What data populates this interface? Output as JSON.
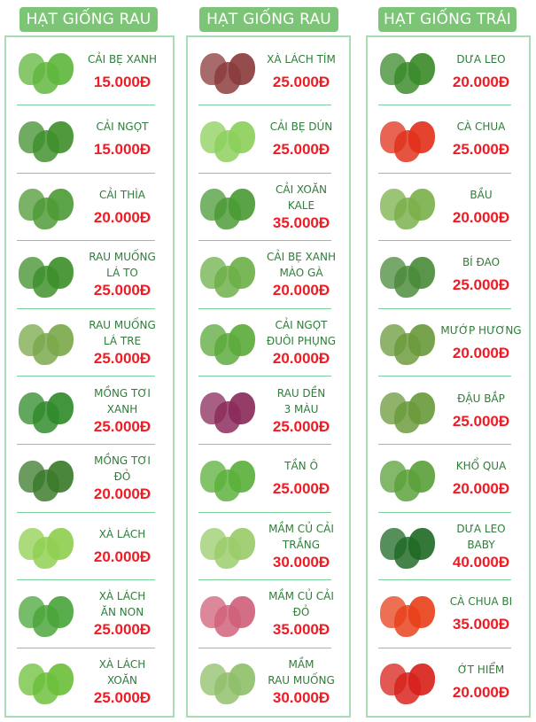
{
  "colors": {
    "header_bg": "#7cc576",
    "border": "#a8dcb4",
    "name": "#2f7d3a",
    "price": "#ee1c25"
  },
  "columns": [
    {
      "title": "HẠT GIỐNG RAU",
      "items": [
        {
          "name": [
            "CẢI BẸ XANH"
          ],
          "price": "15.000Đ",
          "image": "cai-be-xanh",
          "image_color": "#5fb63c"
        },
        {
          "name": [
            "CẢI NGỌT"
          ],
          "price": "15.000Đ",
          "image": "cai-ngot",
          "image_color": "#3f8f2c"
        },
        {
          "name": [
            "CẢI THÌA"
          ],
          "price": "20.000Đ",
          "image": "cai-thia",
          "image_color": "#4d9a35"
        },
        {
          "name": [
            "RAU MUỐNG",
            "LÁ TO"
          ],
          "price": "25.000Đ",
          "image": "rau-muong-la-to",
          "image_color": "#3d8f2a"
        },
        {
          "name": [
            "RAU MUỐNG",
            "LÁ TRE"
          ],
          "price": "25.000Đ",
          "image": "rau-muong-la-tre",
          "image_color": "#7aa84a"
        },
        {
          "name": [
            "MỒNG TƠI",
            "XANH"
          ],
          "price": "25.000Đ",
          "image": "mong-toi-xanh",
          "image_color": "#2f8a2a"
        },
        {
          "name": [
            "MỒNG TƠI",
            "ĐỎ"
          ],
          "price": "20.000Đ",
          "image": "mong-toi-do",
          "image_color": "#3a7a2a"
        },
        {
          "name": [
            "XÀ LÁCH"
          ],
          "price": "20.000Đ",
          "image": "xa-lach",
          "image_color": "#8fcf4f"
        },
        {
          "name": [
            "XÀ LÁCH",
            "ĂN NON"
          ],
          "price": "25.000Đ",
          "image": "xa-lach-an-non",
          "image_color": "#4aa53a"
        },
        {
          "name": [
            "XÀ LÁCH",
            "XOĂN"
          ],
          "price": "25.000Đ",
          "image": "xa-lach-xoan",
          "image_color": "#6cbf3a"
        }
      ]
    },
    {
      "title": "HẠT GIỐNG RAU",
      "items": [
        {
          "name": [
            "XÀ LÁCH TÍM"
          ],
          "price": "25.000Đ",
          "image": "xa-lach-tim",
          "image_color": "#8a3a3a"
        },
        {
          "name": [
            "CẢI BẸ DÚN"
          ],
          "price": "25.000Đ",
          "image": "cai-be-dun",
          "image_color": "#8ccf5a"
        },
        {
          "name": [
            "CẢI XOĂN",
            "KALE"
          ],
          "price": "35.000Đ",
          "image": "cai-xoan-kale",
          "image_color": "#4a9a35"
        },
        {
          "name": [
            "CẢI BẸ XANH",
            "MÀO GÀ"
          ],
          "price": "20.000Đ",
          "image": "cai-be-xanh-mao-ga",
          "image_color": "#6cb048"
        },
        {
          "name": [
            "CẢI NGỌT",
            "ĐUÔI PHỤNG"
          ],
          "price": "20.000Đ",
          "image": "cai-ngot-duoi-phung",
          "image_color": "#5aaa3a"
        },
        {
          "name": [
            "RAU DỀN",
            "3 MÀU"
          ],
          "price": "25.000Đ",
          "image": "rau-den-3-mau",
          "image_color": "#8a2a5a"
        },
        {
          "name": [
            "TẦN Ô"
          ],
          "price": "25.000Đ",
          "image": "tan-o",
          "image_color": "#5ab03a"
        },
        {
          "name": [
            "MẦM CỦ CẢI",
            "TRẮNG"
          ],
          "price": "30.000Đ",
          "image": "mam-cu-cai-trang",
          "image_color": "#9acb6a"
        },
        {
          "name": [
            "MẦM CỦ CẢI",
            "ĐỎ"
          ],
          "price": "35.000Đ",
          "image": "mam-cu-cai-do",
          "image_color": "#d0607a"
        },
        {
          "name": [
            "MẦM",
            "RAU MUỐNG"
          ],
          "price": "30.000Đ",
          "image": "mam-rau-muong",
          "image_color": "#8fbf6a"
        }
      ]
    },
    {
      "title": "HẠT GIỐNG TRÁI",
      "items": [
        {
          "name": [
            "DƯA LEO"
          ],
          "price": "20.000Đ",
          "image": "dua-leo",
          "image_color": "#3a8a2a"
        },
        {
          "name": [
            "CÀ CHUA"
          ],
          "price": "25.000Đ",
          "image": "ca-chua",
          "image_color": "#e0301a"
        },
        {
          "name": [
            "BẦU"
          ],
          "price": "20.000Đ",
          "image": "bau",
          "image_color": "#7ab04a"
        },
        {
          "name": [
            "BÍ ĐAO"
          ],
          "price": "25.000Đ",
          "image": "bi-dao",
          "image_color": "#4a8a3a"
        },
        {
          "name": [
            "MƯỚP HƯƠNG"
          ],
          "price": "20.000Đ",
          "image": "muop-huong",
          "image_color": "#6a9a3a"
        },
        {
          "name": [
            "ĐẬU BẮP"
          ],
          "price": "25.000Đ",
          "image": "dau-bap",
          "image_color": "#6a9a3a"
        },
        {
          "name": [
            "KHỔ QUA"
          ],
          "price": "20.000Đ",
          "image": "kho-qua",
          "image_color": "#5aa03a"
        },
        {
          "name": [
            "DƯA LEO",
            "BABY"
          ],
          "price": "40.000Đ",
          "image": "dua-leo-baby",
          "image_color": "#1f6a25"
        },
        {
          "name": [
            "CÀ CHUA BI"
          ],
          "price": "35.000Đ",
          "image": "ca-chua-bi",
          "image_color": "#e8401a"
        },
        {
          "name": [
            "ỚT HIỂM"
          ],
          "price": "20.000Đ",
          "image": "ot-hiem",
          "image_color": "#d8201a"
        }
      ]
    }
  ]
}
